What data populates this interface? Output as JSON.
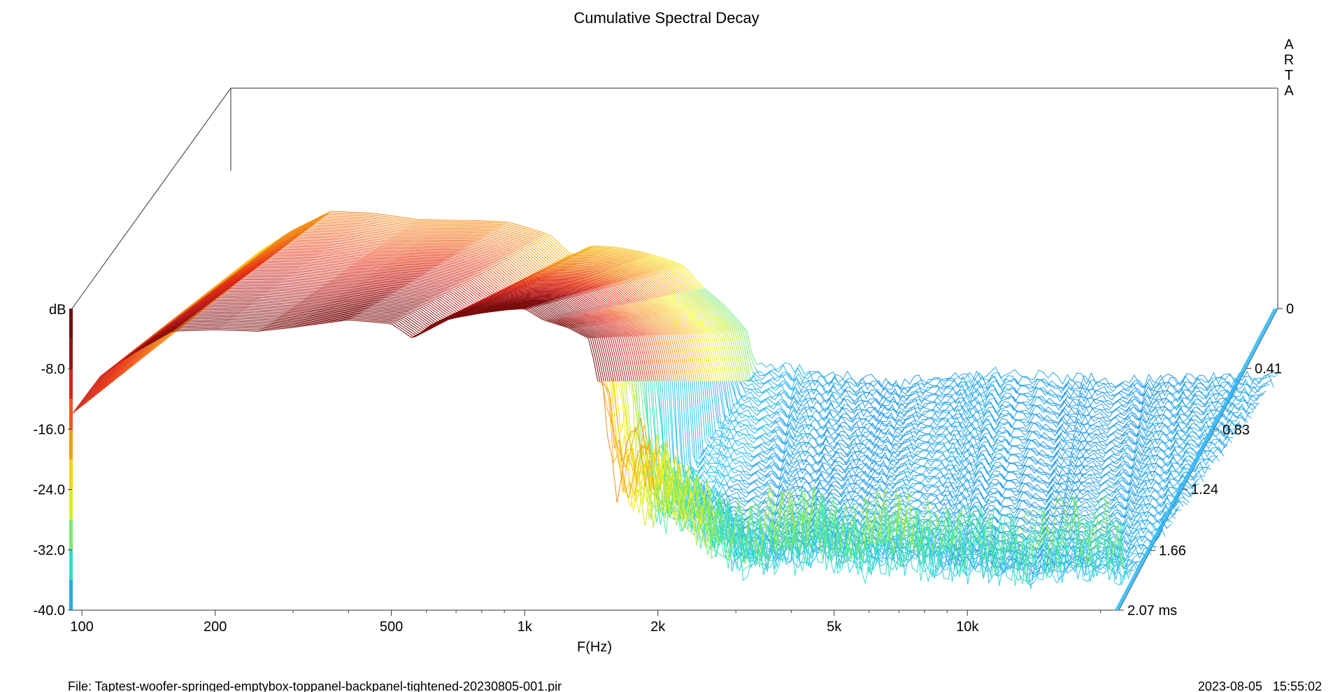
{
  "chart_data": {
    "type": "waterfall-3d",
    "title": "Cumulative Spectral Decay",
    "watermark": "ARTA",
    "xlabel": "F(Hz)",
    "ylabel": "dB",
    "x_scale": "log",
    "xlim": [
      95,
      22000
    ],
    "x_ticks": [
      {
        "value": 100,
        "label": "100"
      },
      {
        "value": 200,
        "label": "200"
      },
      {
        "value": 500,
        "label": "500"
      },
      {
        "value": 1000,
        "label": "1k"
      },
      {
        "value": 2000,
        "label": "2k"
      },
      {
        "value": 5000,
        "label": "5k"
      },
      {
        "value": 10000,
        "label": "10k"
      }
    ],
    "x_minor_ticks": [
      300,
      400,
      600,
      700,
      800,
      900,
      3000,
      4000,
      6000,
      7000,
      8000,
      9000,
      20000
    ],
    "ylim": [
      -40,
      0
    ],
    "y_ticks": [
      {
        "value": -8,
        "label": "-8.0"
      },
      {
        "value": -16,
        "label": "-16.0"
      },
      {
        "value": -24,
        "label": "-24.0"
      },
      {
        "value": -32,
        "label": "-32.0"
      },
      {
        "value": -40,
        "label": "-40.0"
      }
    ],
    "z_label_unit": "ms",
    "z_ticks": [
      {
        "value": 0,
        "label": "0"
      },
      {
        "value": 0.41,
        "label": "0.41"
      },
      {
        "value": 0.83,
        "label": "0.83"
      },
      {
        "value": 1.24,
        "label": "1.24"
      },
      {
        "value": 1.66,
        "label": "1.66"
      },
      {
        "value": 2.07,
        "label": "2.07 ms"
      }
    ],
    "colormap": [
      {
        "db": -4,
        "color": "#7a0a0a"
      },
      {
        "db": -8,
        "color": "#b91c1c"
      },
      {
        "db": -12,
        "color": "#e73213"
      },
      {
        "db": -16,
        "color": "#f27d1b"
      },
      {
        "db": -20,
        "color": "#f7b21c"
      },
      {
        "db": -24,
        "color": "#f3f21e"
      },
      {
        "db": -28,
        "color": "#b6e83c"
      },
      {
        "db": -32,
        "color": "#3fe9a6"
      },
      {
        "db": -36,
        "color": "#2ec9f3"
      },
      {
        "db": -40,
        "color": "#1e88e5"
      }
    ],
    "front_slice": {
      "time_ms": 0,
      "x": [
        95,
        110,
        130,
        160,
        200,
        250,
        300,
        400,
        500,
        560,
        620,
        700,
        800,
        900,
        1000,
        1100,
        1250,
        1400,
        1600,
        1800,
        2000,
        2400,
        3000,
        3600,
        4300,
        5200,
        6500,
        8000,
        10000,
        13000,
        17000,
        22000
      ],
      "y": [
        -14,
        -9,
        -6,
        -3,
        -2.8,
        -3,
        -2.5,
        -1.5,
        -2,
        -4,
        -2,
        -1.2,
        -0.6,
        -0.2,
        0,
        -1.5,
        -2.5,
        -4,
        -21,
        -19,
        -22,
        -26,
        -30,
        -28,
        -27,
        -30,
        -28,
        -30,
        -29,
        -31,
        -29,
        -30
      ]
    },
    "last_slice": {
      "time_ms": 2.07,
      "x": [
        1600,
        2000,
        3000,
        5000,
        10000,
        20000
      ],
      "y": [
        -36,
        -37,
        -38,
        -37,
        -38,
        -37
      ]
    }
  },
  "footer": {
    "file": "File: Taptest-woofer-springed-emptybox-toppanel-backpanel-tightened-20230805-001.pir",
    "timestamp": "2023-08-05   15:55:02"
  }
}
